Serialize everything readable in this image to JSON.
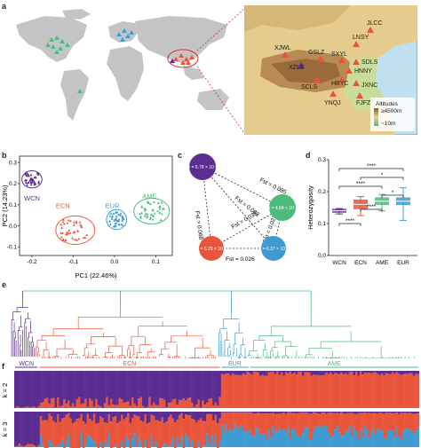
{
  "panel_letters": {
    "a": "a",
    "b": "b",
    "c": "c",
    "d": "d",
    "e": "e",
    "f": "f"
  },
  "colors": {
    "WCN": "#5b2d90",
    "ECN": "#e8553b",
    "EUR": "#3e9bd1",
    "AME": "#4dbb7c"
  },
  "map_labels": [
    {
      "text": "JLCC"
    },
    {
      "text": "XJWL"
    },
    {
      "text": "LNSY"
    },
    {
      "text": "GSLZ"
    },
    {
      "text": "SXYL"
    },
    {
      "text": "SDLS"
    },
    {
      "text": "XZLZ"
    },
    {
      "text": "HNNY"
    },
    {
      "text": "SCLS"
    },
    {
      "text": "HBYC"
    },
    {
      "text": "JXNC"
    },
    {
      "text": "YNQJ"
    },
    {
      "text": "FJFZ"
    }
  ],
  "map_legend": {
    "title": "Altitudes",
    "high": "≥4500m",
    "low": "~10m"
  },
  "chart_data": [
    {
      "type": "scatter",
      "xlabel": "PC1 (22.46%)",
      "ylabel": "PC2 (14.23%)",
      "xticks": [
        "-0.2",
        "-0.1",
        "0.0",
        "0.1"
      ],
      "yticks": [
        "0.3",
        "0.2",
        "0.1",
        "0.0",
        "-0.1"
      ],
      "xlim": [
        -0.23,
        0.14
      ],
      "ylim": [
        -0.14,
        0.33
      ],
      "groups": [
        {
          "name": "WCN",
          "cx": -0.2,
          "cy": 0.22
        },
        {
          "name": "ECN",
          "cx": -0.095,
          "cy": -0.02
        },
        {
          "name": "EUR",
          "cx": 0.005,
          "cy": 0.03
        },
        {
          "name": "AME",
          "cx": 0.09,
          "cy": 0.07
        }
      ]
    },
    {
      "type": "network",
      "nodes": [
        {
          "name": "WCN",
          "pi": "π = 5.78 × 10⁻³"
        },
        {
          "name": "AME",
          "pi": "π = 4.84 × 10⁻³"
        },
        {
          "name": "ECN",
          "pi": "π = 5.29 × 10⁻³"
        },
        {
          "name": "EUR",
          "pi": "π = 6.37 × 10⁻³"
        }
      ],
      "edges": [
        {
          "label": "Fst = 0.085"
        },
        {
          "label": "Fst = 0.083"
        },
        {
          "label": "Fst = 0.068"
        },
        {
          "label": "Fst = 0.035"
        },
        {
          "label": "Fst = 0.021"
        },
        {
          "label": "Fst = 0.026"
        }
      ]
    },
    {
      "type": "box",
      "ylabel": "Heterozygosity",
      "yticks": [
        "0.3",
        "0.2",
        "0.1",
        "0.0"
      ],
      "ylim": [
        0,
        0.3
      ],
      "categories": [
        "WCN",
        "ECN",
        "AME",
        "EUR"
      ],
      "medians": [
        0.14,
        0.16,
        0.17,
        0.17
      ],
      "sig": [
        "****",
        "****",
        "*",
        "****",
        "*",
        "****"
      ]
    }
  ],
  "tree_groups": [
    {
      "name": "WCN",
      "share": 0.06
    },
    {
      "name": "ECN",
      "share": 0.45
    },
    {
      "name": "EUR",
      "share": 0.07
    },
    {
      "name": "AME",
      "share": 0.42
    }
  ],
  "admixture": {
    "k2": "k = 2",
    "k3": "k = 3"
  }
}
